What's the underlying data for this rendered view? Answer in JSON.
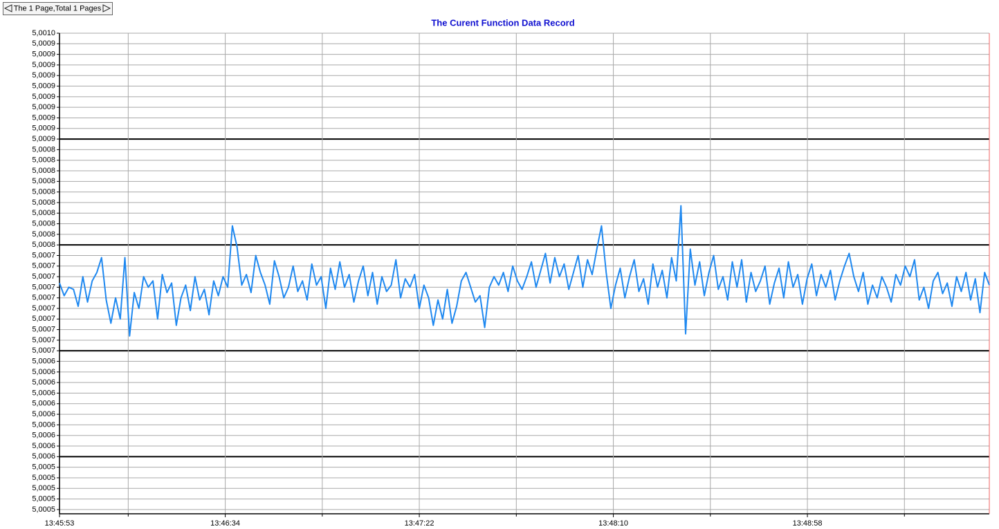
{
  "pager": {
    "text": "The 1 Page,Total 1 Pages"
  },
  "chart_data": {
    "type": "line",
    "title": "The Curent Function Data Record",
    "grid": true,
    "xlim": [
      49553,
      49783
    ],
    "xticks": [
      {
        "value": 49553,
        "label": "13:45:53"
      },
      {
        "value": 49594,
        "label": "13:46:34"
      },
      {
        "value": 49642,
        "label": "13:47:22"
      },
      {
        "value": 49690,
        "label": "13:48:10"
      },
      {
        "value": 49738,
        "label": "13:48:58"
      }
    ],
    "xgrid": [
      49570,
      49618,
      49666,
      49714,
      49762
    ],
    "ylim": [
      5.000546,
      5.001
    ],
    "yticks": [
      {
        "value": 5.001,
        "label": "5,0010"
      },
      {
        "value": 5.00099,
        "label": "5,0009"
      },
      {
        "value": 5.00098,
        "label": "5,0009"
      },
      {
        "value": 5.00097,
        "label": "5,0009"
      },
      {
        "value": 5.00096,
        "label": "5,0009"
      },
      {
        "value": 5.00095,
        "label": "5,0009"
      },
      {
        "value": 5.00094,
        "label": "5,0009"
      },
      {
        "value": 5.00093,
        "label": "5,0009"
      },
      {
        "value": 5.00092,
        "label": "5,0009"
      },
      {
        "value": 5.00091,
        "label": "5,0009"
      },
      {
        "value": 5.0009,
        "label": "5,0009"
      },
      {
        "value": 5.00089,
        "label": "5,0008"
      },
      {
        "value": 5.00088,
        "label": "5,0008"
      },
      {
        "value": 5.00087,
        "label": "5,0008"
      },
      {
        "value": 5.00086,
        "label": "5,0008"
      },
      {
        "value": 5.00085,
        "label": "5,0008"
      },
      {
        "value": 5.00084,
        "label": "5,0008"
      },
      {
        "value": 5.00083,
        "label": "5,0008"
      },
      {
        "value": 5.00082,
        "label": "5,0008"
      },
      {
        "value": 5.00081,
        "label": "5,0008"
      },
      {
        "value": 5.0008,
        "label": "5,0008"
      },
      {
        "value": 5.00079,
        "label": "5,0007"
      },
      {
        "value": 5.00078,
        "label": "5,0007"
      },
      {
        "value": 5.00077,
        "label": "5,0007"
      },
      {
        "value": 5.00076,
        "label": "5,0007"
      },
      {
        "value": 5.00075,
        "label": "5,0007"
      },
      {
        "value": 5.00074,
        "label": "5,0007"
      },
      {
        "value": 5.00073,
        "label": "5,0007"
      },
      {
        "value": 5.00072,
        "label": "5,0007"
      },
      {
        "value": 5.00071,
        "label": "5,0007"
      },
      {
        "value": 5.0007,
        "label": "5,0007"
      },
      {
        "value": 5.00069,
        "label": "5,0006"
      },
      {
        "value": 5.00068,
        "label": "5,0006"
      },
      {
        "value": 5.00067,
        "label": "5,0006"
      },
      {
        "value": 5.00066,
        "label": "5,0006"
      },
      {
        "value": 5.00065,
        "label": "5,0006"
      },
      {
        "value": 5.00064,
        "label": "5,0006"
      },
      {
        "value": 5.00063,
        "label": "5,0006"
      },
      {
        "value": 5.00062,
        "label": "5,0006"
      },
      {
        "value": 5.00061,
        "label": "5,0006"
      },
      {
        "value": 5.0006,
        "label": "5,0006"
      },
      {
        "value": 5.00059,
        "label": "5,0005"
      },
      {
        "value": 5.00058,
        "label": "5,0005"
      },
      {
        "value": 5.00057,
        "label": "5,0005"
      },
      {
        "value": 5.00056,
        "label": "5,0005"
      },
      {
        "value": 5.00055,
        "label": "5,0005"
      }
    ],
    "series": [
      {
        "color": "#1e88f0",
        "values": [
          5.000764,
          5.000752,
          5.00076,
          5.000758,
          5.000742,
          5.00077,
          5.000746,
          5.000766,
          5.000774,
          5.000788,
          5.000748,
          5.000726,
          5.00075,
          5.00073,
          5.000788,
          5.000714,
          5.000755,
          5.00074,
          5.00077,
          5.00076,
          5.000766,
          5.00073,
          5.000772,
          5.000755,
          5.000764,
          5.000724,
          5.00075,
          5.000762,
          5.000738,
          5.00077,
          5.000748,
          5.000758,
          5.000734,
          5.000766,
          5.000752,
          5.00077,
          5.00076,
          5.000818,
          5.000798,
          5.000762,
          5.000772,
          5.000755,
          5.00079,
          5.000774,
          5.000762,
          5.000744,
          5.000785,
          5.00077,
          5.00075,
          5.00076,
          5.00078,
          5.000756,
          5.000766,
          5.000748,
          5.000782,
          5.000762,
          5.00077,
          5.00074,
          5.000778,
          5.000758,
          5.000784,
          5.00076,
          5.000772,
          5.000746,
          5.000766,
          5.00078,
          5.000752,
          5.000774,
          5.000744,
          5.00077,
          5.000756,
          5.000762,
          5.000786,
          5.00075,
          5.000768,
          5.00076,
          5.000772,
          5.00074,
          5.000762,
          5.00075,
          5.000724,
          5.000748,
          5.00073,
          5.000758,
          5.000726,
          5.000742,
          5.000766,
          5.000774,
          5.00076,
          5.000746,
          5.000752,
          5.000722,
          5.00076,
          5.00077,
          5.000762,
          5.000774,
          5.000756,
          5.00078,
          5.000766,
          5.000758,
          5.00077,
          5.000784,
          5.00076,
          5.000776,
          5.000792,
          5.000764,
          5.000788,
          5.00077,
          5.000782,
          5.000758,
          5.000774,
          5.00079,
          5.00076,
          5.000786,
          5.000772,
          5.000796,
          5.000818,
          5.000774,
          5.00074,
          5.000762,
          5.000778,
          5.00075,
          5.00077,
          5.000786,
          5.000756,
          5.000768,
          5.000744,
          5.000782,
          5.00076,
          5.000776,
          5.00075,
          5.000788,
          5.000766,
          5.000837,
          5.000716,
          5.000796,
          5.000762,
          5.000784,
          5.000752,
          5.000774,
          5.00079,
          5.000758,
          5.00077,
          5.000748,
          5.000784,
          5.00076,
          5.000786,
          5.000746,
          5.000774,
          5.000756,
          5.000766,
          5.00078,
          5.000744,
          5.000764,
          5.000778,
          5.00075,
          5.000784,
          5.00076,
          5.000772,
          5.000744,
          5.000768,
          5.000782,
          5.000752,
          5.000772,
          5.00076,
          5.000776,
          5.000748,
          5.000766,
          5.00078,
          5.000792,
          5.00077,
          5.000756,
          5.000774,
          5.000744,
          5.000762,
          5.00075,
          5.00077,
          5.00076,
          5.000746,
          5.000772,
          5.000762,
          5.00078,
          5.00077,
          5.000786,
          5.000748,
          5.00076,
          5.00074,
          5.000766,
          5.000774,
          5.000754,
          5.000764,
          5.000742,
          5.00077,
          5.000756,
          5.000774,
          5.000748,
          5.000768,
          5.000736,
          5.000774,
          5.000762
        ]
      }
    ]
  }
}
